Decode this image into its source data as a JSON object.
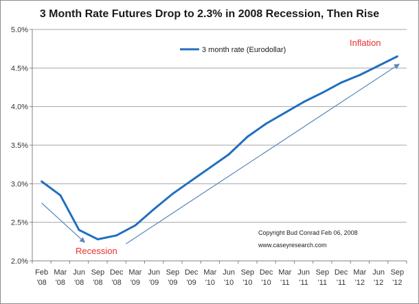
{
  "chart_data": {
    "type": "line",
    "title": "3 Month Rate Futures Drop to 2.3% in 2008 Recession, Then Rise",
    "categories": [
      [
        "Feb",
        "'08"
      ],
      [
        "Mar",
        "'08"
      ],
      [
        "Jun",
        "'08"
      ],
      [
        "Sep",
        "'08"
      ],
      [
        "Dec",
        "'08"
      ],
      [
        "Mar",
        "'09"
      ],
      [
        "Jun",
        "'09"
      ],
      [
        "Sep",
        "'09"
      ],
      [
        "Dec",
        "'09"
      ],
      [
        "Mar",
        "'10"
      ],
      [
        "Jun",
        "'10"
      ],
      [
        "Sep",
        "'10"
      ],
      [
        "Dec",
        "'10"
      ],
      [
        "Mar",
        "'11"
      ],
      [
        "Jun",
        "'11"
      ],
      [
        "Sep",
        "'11"
      ],
      [
        "Dec",
        "'11"
      ],
      [
        "Mar",
        "'12"
      ],
      [
        "Jun",
        "'12"
      ],
      [
        "Sep",
        "'12"
      ]
    ],
    "series": [
      {
        "name": "3 month rate (Eurodollar)",
        "color": "#1f6fbf",
        "values": [
          3.03,
          2.85,
          2.4,
          2.28,
          2.33,
          2.46,
          2.67,
          2.87,
          3.04,
          3.21,
          3.38,
          3.61,
          3.78,
          3.92,
          4.06,
          4.18,
          4.31,
          4.41,
          4.53,
          4.65
        ]
      }
    ],
    "ylim": [
      2.0,
      5.0
    ],
    "yticks": [
      "2.0%",
      "2.5%",
      "3.0%",
      "3.5%",
      "4.0%",
      "4.5%",
      "5.0%"
    ],
    "ytick_values": [
      2.0,
      2.5,
      3.0,
      3.5,
      4.0,
      4.5,
      5.0
    ],
    "grid": true,
    "legend_position": "top-center",
    "annotations": {
      "recession": "Recession",
      "inflation": "Inflation",
      "copyright": "Copyright Bud Conrad Feb 06, 2008",
      "website": "www.caseyresearch.com"
    },
    "arrows": [
      {
        "from": [
          0,
          2.75
        ],
        "to": [
          2.3,
          2.24
        ]
      },
      {
        "from": [
          4.5,
          2.22
        ],
        "to": [
          19.1,
          4.55
        ]
      }
    ],
    "colors": {
      "line": "#1f6fbf",
      "arrow": "#5a86bd",
      "annotation_red": "#e8302c",
      "grid": "#a6a6a6"
    }
  }
}
